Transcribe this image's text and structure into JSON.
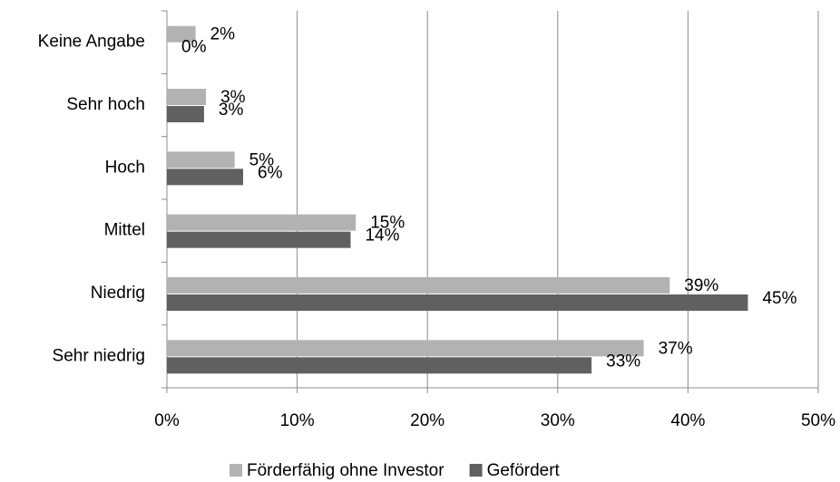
{
  "chart_data": {
    "type": "hbar",
    "categories": [
      "Keine Angabe",
      "Sehr hoch",
      "Hoch",
      "Mittel",
      "Niedrig",
      "Sehr niedrig"
    ],
    "series": [
      {
        "name": "Förderfähig ohne Investor",
        "color": "#b2b2b2",
        "values": [
          2.2,
          3.0,
          5.2,
          14.5,
          38.6,
          36.6
        ],
        "value_labels": [
          "2%",
          "3%",
          "5%",
          "15%",
          "39%",
          "37%"
        ]
      },
      {
        "name": "Gefördert",
        "color": "#606060",
        "values": [
          0,
          2.85,
          5.85,
          14.1,
          44.6,
          32.6
        ],
        "value_labels": [
          "0%",
          "3%",
          "6%",
          "14%",
          "45%",
          "33%"
        ]
      }
    ],
    "xlim": [
      0,
      50
    ],
    "xticks": [
      {
        "value": 0,
        "label": "0%"
      },
      {
        "value": 10,
        "label": "10%"
      },
      {
        "value": 20,
        "label": "20%"
      },
      {
        "value": 30,
        "label": "30%"
      },
      {
        "value": 40,
        "label": "40%"
      },
      {
        "value": 50,
        "label": "50%"
      }
    ],
    "grid": true
  }
}
